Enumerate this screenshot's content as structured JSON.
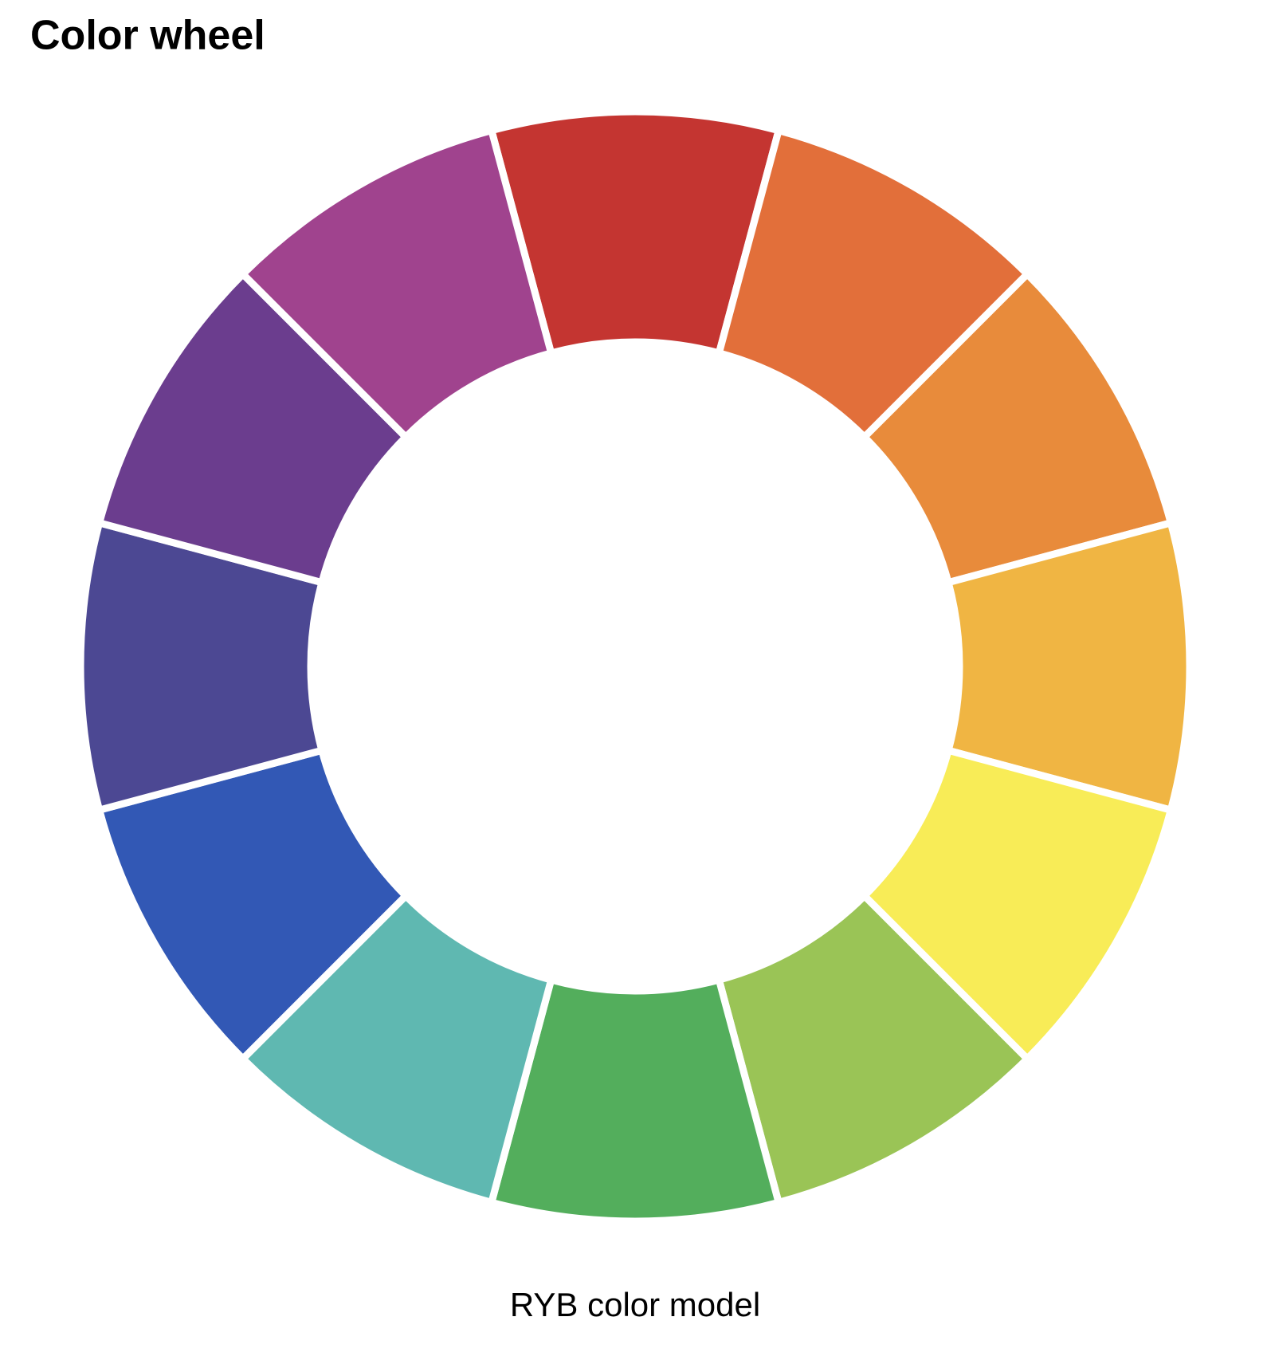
{
  "chart_data": {
    "type": "donut",
    "title": "Color wheel",
    "caption": "RYB color model",
    "values": [
      1,
      1,
      1,
      1,
      1,
      1,
      1,
      1,
      1,
      1,
      1,
      1
    ],
    "colors": [
      "#c43531",
      "#e26f3a",
      "#e88b3b",
      "#f0b543",
      "#f8ec57",
      "#9ac456",
      "#53ae5c",
      "#5fb8b1",
      "#3258b5",
      "#4c4893",
      "#6b3d8e",
      "#a0438e"
    ]
  }
}
